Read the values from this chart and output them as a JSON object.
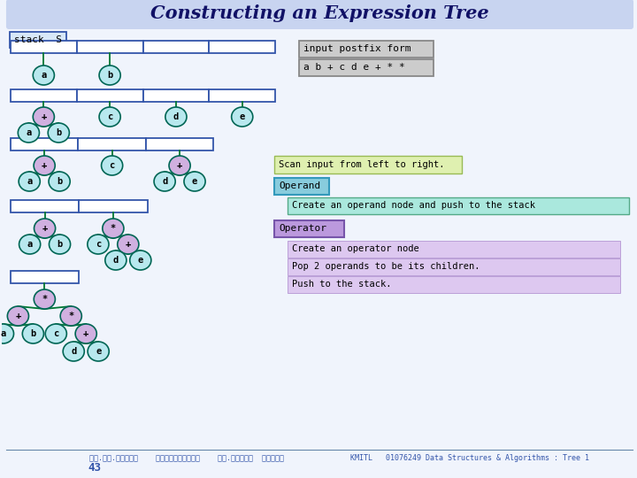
{
  "title": "Constructing an Expression Tree",
  "title_bg": "#c8d4f0",
  "bg_color": "#f0f4fc",
  "stack_label": "stack  S",
  "postfix_label": "input postfix form",
  "postfix_expr": "a b + c d e + * *",
  "scan_text": "Scan input from left to right.",
  "operand_label": "Operand",
  "operand_desc": "Create an operand node and push to the stack",
  "operator_label": "Operator",
  "op_desc1": "Create an operator node",
  "op_desc2": "Pop 2 operands to be its children.",
  "op_desc3": "Push to the stack.",
  "footer_left": "รศ.ดร.บุญธร    เครือตราชู    รศ.กฤษวน  ครบรณ",
  "footer_right": "KMITL   01076249 Data Structures & Algorithms : Tree 1",
  "footer_num": "43",
  "node_operand": "#b8e8ee",
  "node_operator": "#d0b0e0",
  "node_border": "#006655",
  "line_color": "#007733",
  "stack_border": "#3355aa",
  "stack_bg": "#ffffff",
  "scan_bg": "#dff0b0",
  "operand_bg": "#88ccdd",
  "operand_desc_bg": "#aae8dd",
  "operator_bg": "#bb99dd",
  "operator_desc_bg": "#ddc8f0"
}
